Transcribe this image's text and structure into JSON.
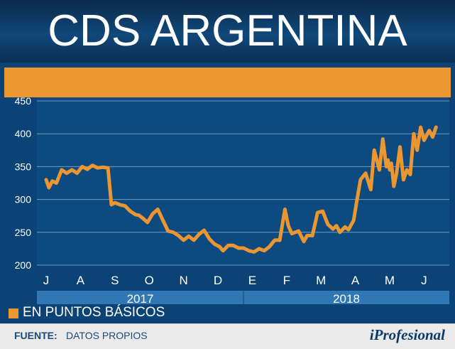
{
  "header": {
    "title": "CDS ARGENTINA"
  },
  "legend": {
    "label": "EN PUNTOS BÁSICOS"
  },
  "footer": {
    "source_label": "FUENTE:",
    "source_value": "DATOS PROPIOS",
    "brand": "iProfesional"
  },
  "colors": {
    "background": "#0b4376",
    "accent": "#ec9631",
    "year_band": "#2f78b4",
    "text": "#ffffff"
  },
  "chart_data": {
    "type": "line",
    "title": "CDS ARGENTINA",
    "ylabel": "",
    "xlabel": "",
    "ylim": [
      200,
      450
    ],
    "yticks": [
      200,
      250,
      300,
      350,
      400,
      450
    ],
    "grid": true,
    "months": [
      "J",
      "A",
      "S",
      "O",
      "N",
      "D",
      "E",
      "F",
      "M",
      "A",
      "M",
      "J"
    ],
    "years": [
      "2017",
      "2018"
    ],
    "series": [
      {
        "name": "EN PUNTOS BÁSICOS",
        "color": "#ec9631",
        "x": [
          0.0,
          0.08,
          0.18,
          0.3,
          0.45,
          0.6,
          0.75,
          0.9,
          1.05,
          1.2,
          1.35,
          1.5,
          1.65,
          1.8,
          1.9,
          2.0,
          2.15,
          2.3,
          2.45,
          2.6,
          2.7,
          2.8,
          2.95,
          3.1,
          3.25,
          3.4,
          3.55,
          3.7,
          3.85,
          4.0,
          4.15,
          4.3,
          4.45,
          4.6,
          4.75,
          4.9,
          5.05,
          5.15,
          5.3,
          5.45,
          5.6,
          5.75,
          5.9,
          6.05,
          6.2,
          6.35,
          6.5,
          6.65,
          6.8,
          6.95,
          7.05,
          7.15,
          7.25,
          7.35,
          7.5,
          7.6,
          7.75,
          7.9,
          8.05,
          8.2,
          8.35,
          8.45,
          8.55,
          8.7,
          8.8,
          8.95,
          9.05,
          9.15,
          9.3,
          9.45,
          9.55,
          9.7,
          9.8,
          9.9,
          9.95,
          10.0,
          10.05,
          10.12,
          10.2,
          10.3,
          10.4,
          10.5,
          10.6,
          10.7,
          10.8,
          10.9,
          11.0,
          11.05,
          11.15,
          11.25,
          11.35
        ],
        "y": [
          330,
          318,
          328,
          325,
          345,
          340,
          345,
          340,
          350,
          346,
          352,
          348,
          349,
          348,
          292,
          295,
          292,
          290,
          282,
          277,
          276,
          272,
          265,
          278,
          285,
          268,
          252,
          250,
          245,
          238,
          244,
          238,
          247,
          253,
          240,
          232,
          228,
          222,
          230,
          230,
          226,
          226,
          222,
          220,
          225,
          222,
          228,
          238,
          238,
          285,
          260,
          248,
          250,
          252,
          236,
          245,
          245,
          280,
          282,
          262,
          255,
          260,
          250,
          258,
          254,
          268,
          300,
          330,
          340,
          315,
          375,
          345,
          392,
          350,
          360,
          345,
          355,
          320,
          340,
          380,
          330,
          345,
          338,
          400,
          375,
          410,
          390,
          395,
          405,
          395,
          410
        ]
      }
    ]
  }
}
